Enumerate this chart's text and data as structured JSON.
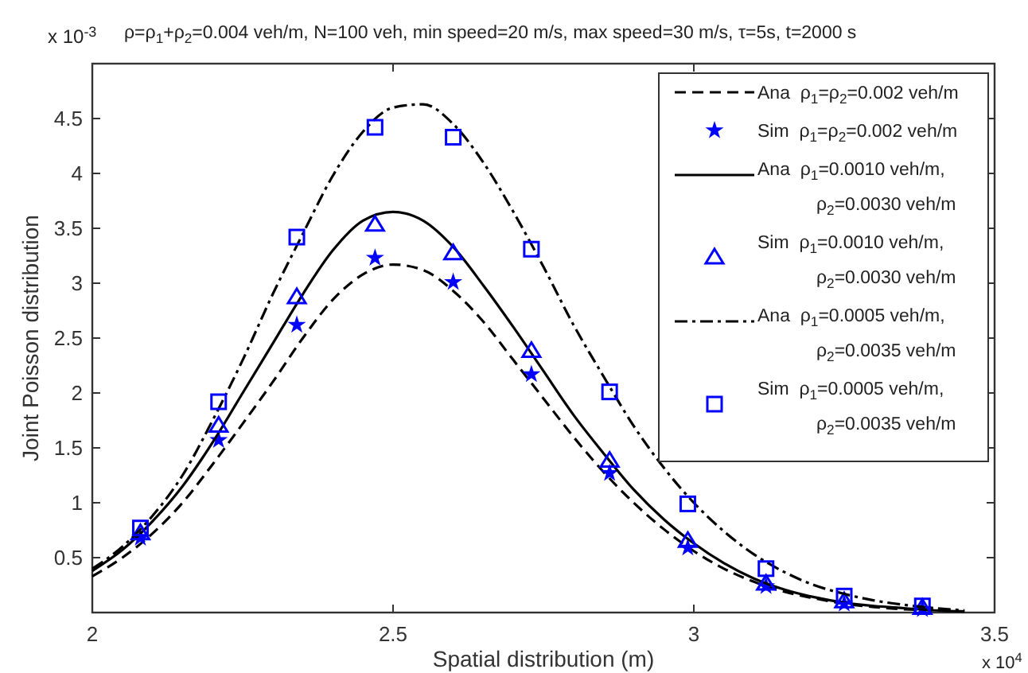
{
  "chart_data": {
    "type": "line",
    "title": "ρ=ρ$_{1}$+ρ$_{2}$=0.004 veh/m, N=100 veh, min speed=20 m/s, max speed=30 m/s, τ=5s, t=2000 s",
    "xlabel": "Spatial distribution (m)",
    "ylabel": "Joint Poisson distribution",
    "annotations": [
      "x 10$^{-3}$",
      "x 10$^{4}$"
    ],
    "xlim": [
      2,
      3.5
    ],
    "xticks": [
      2,
      2.5,
      3,
      3.5
    ],
    "ylim": [
      0,
      5
    ],
    "yticks": [
      0.5,
      1,
      1.5,
      2,
      2.5,
      3,
      3.5,
      4,
      4.5
    ],
    "grid": false,
    "legend": "top right",
    "series": [
      {
        "name": "Ana  ρ$_{1}$=ρ$_{2}$=0.002 veh/m",
        "line_style": "dashed",
        "marker": "none",
        "color": "#000000",
        "x": [
          2.0,
          2.05,
          2.1,
          2.15,
          2.2,
          2.25,
          2.3,
          2.35,
          2.4,
          2.45,
          2.5,
          2.55,
          2.6,
          2.65,
          2.7,
          2.75,
          2.8,
          2.85,
          2.9,
          2.95,
          3.0,
          3.05,
          3.1,
          3.15,
          3.2,
          3.25,
          3.3,
          3.35,
          3.4,
          3.45
        ],
        "values": [
          0.33,
          0.5,
          0.72,
          1.0,
          1.35,
          1.72,
          2.1,
          2.5,
          2.85,
          3.08,
          3.17,
          3.12,
          2.93,
          2.65,
          2.3,
          1.95,
          1.6,
          1.28,
          1.0,
          0.76,
          0.56,
          0.4,
          0.28,
          0.19,
          0.13,
          0.08,
          0.05,
          0.03,
          0.02,
          0.01
        ]
      },
      {
        "name": "Sim  ρ$_{1}$=ρ$_{2}$=0.002 veh/m",
        "type": "scatter",
        "marker": "star",
        "color": "#0000ff",
        "x": [
          2.08,
          2.21,
          2.34,
          2.47,
          2.6,
          2.73,
          2.86,
          2.99,
          3.12,
          3.25,
          3.38
        ],
        "values": [
          0.68,
          1.57,
          2.62,
          3.23,
          3.01,
          2.17,
          1.27,
          0.59,
          0.24,
          0.08,
          0.03
        ]
      },
      {
        "name": "Ana  ρ$_{1}$=0.0010 veh/m, ρ$_{2}$=0.0030 veh/m",
        "line_style": "solid",
        "marker": "none",
        "color": "#000000",
        "x": [
          2.0,
          2.05,
          2.1,
          2.15,
          2.2,
          2.25,
          2.3,
          2.35,
          2.4,
          2.45,
          2.5,
          2.55,
          2.6,
          2.65,
          2.7,
          2.75,
          2.8,
          2.85,
          2.9,
          2.95,
          3.0,
          3.05,
          3.1,
          3.15,
          3.2,
          3.25,
          3.3,
          3.35,
          3.4,
          3.45
        ],
        "values": [
          0.38,
          0.57,
          0.83,
          1.15,
          1.55,
          2.0,
          2.45,
          2.9,
          3.3,
          3.57,
          3.65,
          3.57,
          3.33,
          2.98,
          2.6,
          2.2,
          1.8,
          1.45,
          1.12,
          0.85,
          0.63,
          0.45,
          0.31,
          0.21,
          0.14,
          0.09,
          0.06,
          0.04,
          0.02,
          0.01
        ]
      },
      {
        "name": "Sim  ρ$_{1}$=0.0010 veh/m, ρ$_{2}$=0.0030 veh/m",
        "type": "scatter",
        "marker": "triangle",
        "color": "#0000ff",
        "x": [
          2.08,
          2.21,
          2.34,
          2.47,
          2.6,
          2.73,
          2.86,
          2.99,
          3.12,
          3.25,
          3.38
        ],
        "values": [
          0.72,
          1.7,
          2.87,
          3.53,
          3.27,
          2.38,
          1.38,
          0.65,
          0.26,
          0.1,
          0.04
        ]
      },
      {
        "name": "Ana  ρ$_{1}$=0.0005 veh/m, ρ$_{2}$=0.0035 veh/m",
        "line_style": "dashdot",
        "marker": "none",
        "color": "#000000",
        "x": [
          2.0,
          2.05,
          2.1,
          2.15,
          2.2,
          2.25,
          2.3,
          2.35,
          2.4,
          2.45,
          2.5,
          2.55,
          2.6,
          2.65,
          2.7,
          2.75,
          2.8,
          2.85,
          2.9,
          2.95,
          3.0,
          3.05,
          3.1,
          3.15,
          3.2,
          3.25,
          3.3,
          3.35,
          3.4,
          3.45
        ],
        "values": [
          0.4,
          0.6,
          0.88,
          1.25,
          1.75,
          2.3,
          2.9,
          3.45,
          3.98,
          4.38,
          4.6,
          4.63,
          4.45,
          4.1,
          3.65,
          3.15,
          2.62,
          2.15,
          1.7,
          1.32,
          1.0,
          0.74,
          0.53,
          0.37,
          0.25,
          0.17,
          0.11,
          0.07,
          0.04,
          0.02
        ]
      },
      {
        "name": "Sim  ρ$_{1}$=0.0005 veh/m, ρ$_{2}$=0.0035 veh/m",
        "type": "scatter",
        "marker": "square",
        "color": "#0000ff",
        "x": [
          2.08,
          2.21,
          2.34,
          2.47,
          2.6,
          2.73,
          2.86,
          2.99,
          3.12,
          3.25,
          3.38
        ],
        "values": [
          0.77,
          1.92,
          3.42,
          4.42,
          4.33,
          3.31,
          2.01,
          0.99,
          0.4,
          0.15,
          0.06
        ]
      }
    ]
  }
}
